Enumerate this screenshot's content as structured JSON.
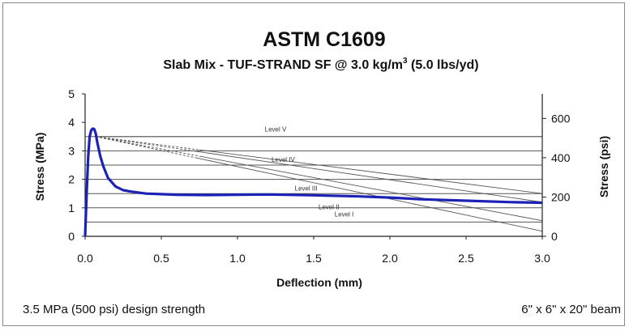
{
  "colors": {
    "curve": "#1c22b4",
    "grid": "#555555",
    "levels": "#555555",
    "frame": "#8a8a8a"
  },
  "chart_data": {
    "type": "line",
    "title": "ASTM C1609",
    "subtitle_main": "Slab Mix - TUF-STRAND SF @ 3.0 kg/m",
    "subtitle_sup": "3",
    "subtitle_tail": " (5.0 lbs/yd)",
    "xlabel": "Deflection (mm)",
    "ylabel": "Stress (MPa)",
    "y2label": "Stress (psi)",
    "xlim": [
      0,
      3.0
    ],
    "ylim": [
      0,
      5
    ],
    "y2lim": [
      0,
      725
    ],
    "xticks": [
      "0.0",
      "0.5",
      "1.0",
      "1.5",
      "2.0",
      "2.5",
      "3.0"
    ],
    "yticks": [
      "0",
      "1",
      "2",
      "3",
      "4",
      "5"
    ],
    "y2ticks": [
      "0",
      "200",
      "400",
      "600"
    ],
    "grid_y_values": [
      0.5,
      1,
      1.5,
      2,
      2.5,
      3,
      3.5
    ],
    "series": [
      {
        "x": [
          0,
          0.01,
          0.02,
          0.03,
          0.04,
          0.05,
          0.06,
          0.07,
          0.08,
          0.1,
          0.12,
          0.15,
          0.2,
          0.25,
          0.3,
          0.4,
          0.5,
          0.6,
          0.8,
          1.0,
          1.2,
          1.5,
          1.8,
          2.0,
          2.2,
          2.5,
          2.8,
          3.0
        ],
        "y": [
          0,
          1.5,
          2.8,
          3.5,
          3.72,
          3.78,
          3.76,
          3.6,
          3.3,
          2.8,
          2.45,
          2.05,
          1.75,
          1.62,
          1.57,
          1.5,
          1.48,
          1.46,
          1.45,
          1.46,
          1.47,
          1.44,
          1.4,
          1.36,
          1.3,
          1.25,
          1.2,
          1.18
        ]
      }
    ],
    "levels": [
      {
        "label": "Level V",
        "x_start": 0.07,
        "y_start": 3.5,
        "x_end": 3.0,
        "y_end": 3.5,
        "dash_x_end": 0.07,
        "label_x": 1.25,
        "label_y": 3.68
      },
      {
        "label": "Level IV",
        "x_start": 0.07,
        "y_start": 3.5,
        "x_end": 3.0,
        "y_end": 1.5,
        "dash_x_end": 0.75,
        "label_x": 1.3,
        "label_y": 2.62
      },
      {
        "label": "Level III",
        "x_start": 0.07,
        "y_start": 3.5,
        "x_end": 3.0,
        "y_end": 1.2,
        "dash_x_end": 0.7,
        "label_x": 1.45,
        "label_y": 1.6
      },
      {
        "label": "Level II",
        "x_start": 0.07,
        "y_start": 3.5,
        "x_end": 3.0,
        "y_end": 0.55,
        "dash_x_end": 0.75,
        "label_x": 1.6,
        "label_y": 0.95
      },
      {
        "label": "Level I",
        "x_start": 0.07,
        "y_start": 3.5,
        "x_end": 3.0,
        "y_end": 0.18,
        "dash_x_end": 0.72,
        "label_x": 1.7,
        "label_y": 0.7
      }
    ]
  },
  "footer": {
    "left": "3.5 MPa (500 psi) design strength",
    "right": "6\" x 6\" x 20\" beam"
  }
}
